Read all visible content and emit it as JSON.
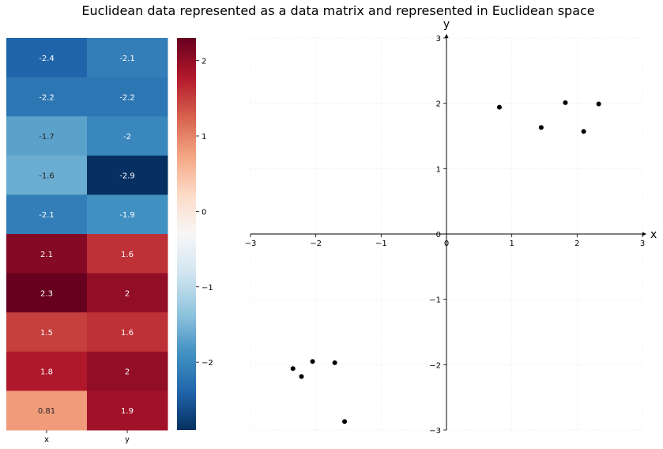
{
  "title": "Euclidean data represented as a data matrix and represented in Euclidean space",
  "chart_data": [
    {
      "type": "heatmap",
      "columns": [
        "x",
        "y"
      ],
      "rows": [
        [
          -2.4,
          -2.1
        ],
        [
          -2.2,
          -2.2
        ],
        [
          -1.7,
          -2
        ],
        [
          -1.6,
          -2.9
        ],
        [
          -2.1,
          -1.9
        ],
        [
          2.1,
          1.6
        ],
        [
          2.3,
          2
        ],
        [
          1.5,
          1.6
        ],
        [
          1.8,
          2
        ],
        [
          0.81,
          1.9
        ]
      ],
      "cell_labels": [
        [
          "-2.4",
          "-2.1"
        ],
        [
          "-2.2",
          "-2.2"
        ],
        [
          "-1.7",
          "-2"
        ],
        [
          "-1.6",
          "-2.9"
        ],
        [
          "-2.1",
          "-1.9"
        ],
        [
          "2.1",
          "1.6"
        ],
        [
          "2.3",
          "2"
        ],
        [
          "1.5",
          "1.6"
        ],
        [
          "1.8",
          "2"
        ],
        [
          "0.81",
          "1.9"
        ]
      ],
      "colormap": "RdBu_r",
      "vmin": -2.9,
      "vmax": 2.3,
      "colorbar_ticks": [
        -2,
        -1,
        0,
        1,
        2
      ],
      "colorbar_tick_labels": [
        "−2",
        "−1",
        "0",
        "1",
        "2"
      ]
    },
    {
      "type": "scatter",
      "x": [
        -2.35,
        -2.22,
        -2.05,
        -1.71,
        -1.56,
        2.1,
        2.33,
        1.45,
        1.82,
        0.81
      ],
      "y": [
        -2.06,
        -2.18,
        -1.95,
        -1.97,
        -2.87,
        1.57,
        1.99,
        1.63,
        2.01,
        1.94
      ],
      "xlabel": "x",
      "ylabel": "y",
      "xlim": [
        -3,
        3
      ],
      "ylim": [
        -3,
        3
      ],
      "xticks": [
        -3,
        -2,
        -1,
        0,
        1,
        2,
        3
      ],
      "yticks": [
        -3,
        -2,
        -1,
        0,
        1,
        2,
        3
      ],
      "tick_labels": [
        "−3",
        "−2",
        "−1",
        "0",
        "1",
        "2",
        "3"
      ],
      "grid": true,
      "marker_color": "#000000"
    }
  ]
}
